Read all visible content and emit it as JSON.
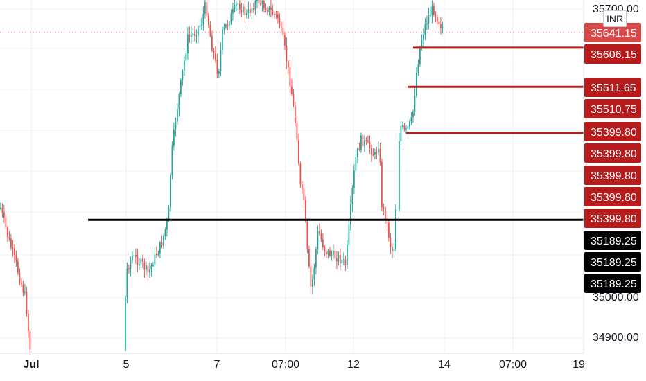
{
  "chart_data": {
    "type": "candlestick",
    "currency": "INR",
    "y_ticks": [
      "35700.00",
      "35000.00",
      "34900.00"
    ],
    "x_ticks": [
      "Jul",
      "5",
      "7",
      "07:00",
      "12",
      "14",
      "07:00",
      "19"
    ],
    "last_price": "35641.15",
    "price_tags": [
      {
        "label": "35641.15",
        "color": "#d84a4a",
        "kind": "last"
      },
      {
        "label": "35606.15",
        "color": "#b71c1c"
      },
      {
        "label": "35511.65",
        "color": "#b71c1c"
      },
      {
        "label": "35510.75",
        "color": "#b71c1c"
      },
      {
        "label": "35399.80",
        "color": "#b71c1c"
      },
      {
        "label": "35399.80",
        "color": "#b71c1c"
      },
      {
        "label": "35399.80",
        "color": "#b71c1c"
      },
      {
        "label": "35399.80",
        "color": "#b71c1c"
      },
      {
        "label": "35399.80",
        "color": "#b71c1c"
      },
      {
        "label": "35189.25",
        "color": "#000000"
      },
      {
        "label": "35189.25",
        "color": "#000000"
      },
      {
        "label": "35189.25",
        "color": "#000000"
      }
    ],
    "horizontal_lines": [
      {
        "price": 35606.15,
        "color": "#b71c1c"
      },
      {
        "price": 35511.65,
        "color": "#b71c1c"
      },
      {
        "price": 35399.8,
        "color": "#b71c1c"
      },
      {
        "price": 35189.25,
        "color": "#000000"
      }
    ],
    "colors": {
      "up": "#26a69a",
      "down": "#ef5350",
      "grid": "#eef0f3",
      "axis_text": "#131722"
    }
  }
}
